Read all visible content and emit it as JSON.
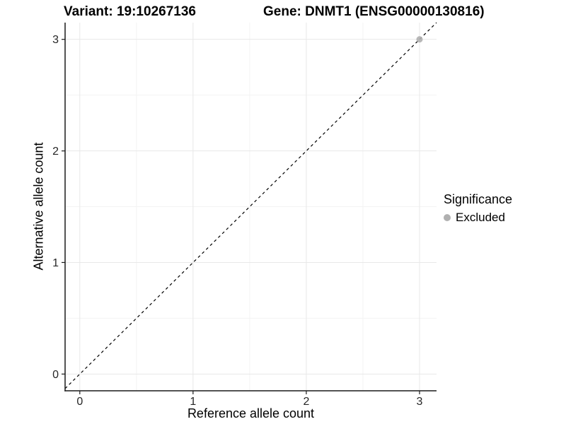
{
  "chart_data": {
    "type": "scatter",
    "title_left": "Variant: 19:10267136",
    "title_right": "Gene: DNMT1 (ENSG00000130816)",
    "xlabel": "Reference allele count",
    "ylabel": "Alternative allele count",
    "xlim": [
      -0.13,
      3.15
    ],
    "ylim": [
      -0.15,
      3.15
    ],
    "xticks": [
      0,
      1,
      2,
      3
    ],
    "yticks": [
      0,
      1,
      2,
      3
    ],
    "xticks_minor": [
      0.5,
      1.5,
      2.5
    ],
    "yticks_minor": [
      0.5,
      1.5,
      2.5
    ],
    "grid": {
      "major_color": "#e8e8e8",
      "minor_color": "#f3f3f3"
    },
    "axis_color": "#1a1a1a",
    "reference_line": {
      "kind": "identity",
      "slope": 1,
      "intercept": 0,
      "style": "dashed",
      "color": "#000000"
    },
    "series": [
      {
        "name": "Excluded",
        "color": "#b0b0b0",
        "points": [
          {
            "x": 3,
            "y": 3
          }
        ]
      }
    ],
    "legend": {
      "title": "Significance",
      "position": "right",
      "items": [
        {
          "label": "Excluded",
          "color": "#b0b0b0"
        }
      ]
    }
  }
}
